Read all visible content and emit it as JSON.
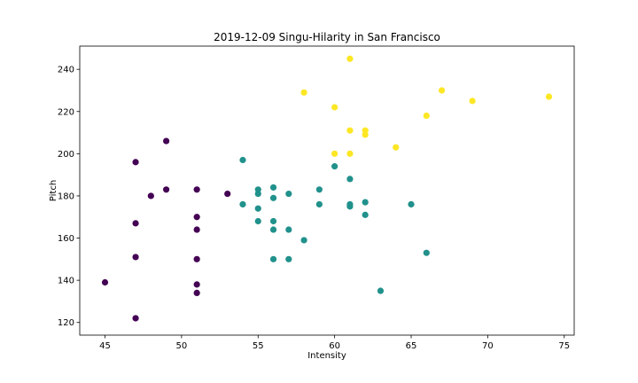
{
  "chart_data": {
    "type": "scatter",
    "title": "2019-12-09 Singu-Hilarity in San Francisco",
    "xlabel": "Intensity",
    "ylabel": "Pitch",
    "xlim": [
      43.35,
      75.65
    ],
    "ylim": [
      114.0,
      251.0
    ],
    "xticks": [
      45,
      50,
      55,
      60,
      65,
      70,
      75
    ],
    "yticks": [
      120,
      140,
      160,
      180,
      200,
      220,
      240
    ],
    "grid": false,
    "legend": "none",
    "colors": {
      "cluster_0": "#440154",
      "cluster_1": "#21918c",
      "cluster_2": "#fde725"
    },
    "series": [
      {
        "color_key": "cluster_0",
        "points": [
          [
            45,
            139
          ],
          [
            47,
            196
          ],
          [
            47,
            167
          ],
          [
            47,
            151
          ],
          [
            47,
            122
          ],
          [
            48,
            180
          ],
          [
            49,
            206
          ],
          [
            49,
            183
          ],
          [
            51,
            183
          ],
          [
            51,
            170
          ],
          [
            51,
            164
          ],
          [
            51,
            150
          ],
          [
            51,
            138
          ],
          [
            51,
            134
          ],
          [
            53,
            181
          ]
        ]
      },
      {
        "color_key": "cluster_1",
        "points": [
          [
            54,
            197
          ],
          [
            54,
            176
          ],
          [
            55,
            183
          ],
          [
            55,
            181
          ],
          [
            55,
            174
          ],
          [
            55,
            168
          ],
          [
            56,
            184
          ],
          [
            56,
            179
          ],
          [
            56,
            168
          ],
          [
            56,
            164
          ],
          [
            56,
            150
          ],
          [
            57,
            181
          ],
          [
            57,
            164
          ],
          [
            57,
            150
          ],
          [
            58,
            159
          ],
          [
            59,
            183
          ],
          [
            59,
            176
          ],
          [
            60,
            194
          ],
          [
            61,
            188
          ],
          [
            61,
            176
          ],
          [
            61,
            175
          ],
          [
            62,
            177
          ],
          [
            62,
            171
          ],
          [
            63,
            135
          ],
          [
            65,
            176
          ],
          [
            66,
            153
          ]
        ]
      },
      {
        "color_key": "cluster_2",
        "points": [
          [
            58,
            229
          ],
          [
            60,
            222
          ],
          [
            60,
            200
          ],
          [
            61,
            245
          ],
          [
            61,
            211
          ],
          [
            61,
            200
          ],
          [
            62,
            211
          ],
          [
            62,
            209
          ],
          [
            64,
            203
          ],
          [
            66,
            218
          ],
          [
            67,
            230
          ],
          [
            69,
            225
          ],
          [
            74,
            227
          ]
        ]
      }
    ]
  }
}
